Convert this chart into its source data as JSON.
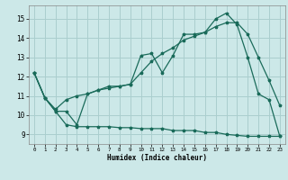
{
  "xlabel": "Humidex (Indice chaleur)",
  "background_color": "#cce8e8",
  "grid_color": "#aacece",
  "line_color": "#1a6b5a",
  "xlim": [
    -0.5,
    23.5
  ],
  "ylim": [
    8.5,
    15.7
  ],
  "xticks": [
    0,
    1,
    2,
    3,
    4,
    5,
    6,
    7,
    8,
    9,
    10,
    11,
    12,
    13,
    14,
    15,
    16,
    17,
    18,
    19,
    20,
    21,
    22,
    23
  ],
  "yticks": [
    9,
    10,
    11,
    12,
    13,
    14,
    15
  ],
  "series1_x": [
    0,
    1,
    2,
    3,
    4,
    5,
    6,
    7,
    8,
    9,
    10,
    11,
    12,
    13,
    14,
    15,
    16,
    17,
    18,
    19,
    20,
    21,
    22,
    23
  ],
  "series1_y": [
    12.2,
    10.9,
    10.2,
    10.2,
    9.5,
    11.1,
    11.3,
    11.5,
    11.5,
    11.6,
    13.1,
    13.2,
    12.2,
    13.1,
    14.2,
    14.2,
    14.3,
    15.0,
    15.3,
    14.7,
    13.0,
    11.1,
    10.8,
    8.9
  ],
  "series2_x": [
    0,
    1,
    2,
    3,
    4,
    5,
    6,
    7,
    8,
    9,
    10,
    11,
    12,
    13,
    14,
    15,
    16,
    17,
    18,
    19,
    20,
    21,
    22,
    23
  ],
  "series2_y": [
    12.2,
    10.9,
    10.2,
    9.5,
    9.4,
    9.4,
    9.4,
    9.4,
    9.35,
    9.35,
    9.3,
    9.3,
    9.3,
    9.2,
    9.2,
    9.2,
    9.1,
    9.1,
    9.0,
    8.95,
    8.9,
    8.9,
    8.9,
    8.9
  ],
  "series3_x": [
    0,
    1,
    2,
    3,
    4,
    5,
    6,
    7,
    8,
    9,
    10,
    11,
    12,
    13,
    14,
    15,
    16,
    17,
    18,
    19,
    20,
    21,
    22,
    23
  ],
  "series3_y": [
    12.2,
    10.9,
    10.3,
    10.8,
    11.0,
    11.1,
    11.3,
    11.4,
    11.5,
    11.6,
    12.2,
    12.8,
    13.2,
    13.5,
    13.9,
    14.1,
    14.3,
    14.6,
    14.8,
    14.8,
    14.2,
    13.0,
    11.8,
    10.5
  ]
}
